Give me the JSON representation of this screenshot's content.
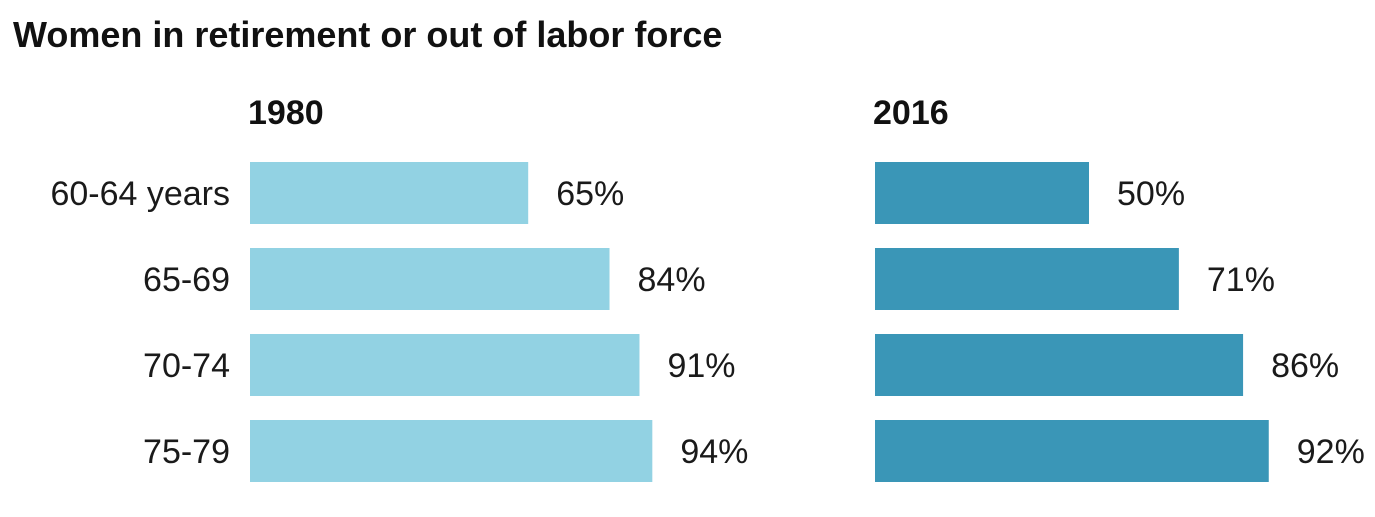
{
  "title": "Women in retirement or out of labor force",
  "chart_data": {
    "type": "bar",
    "orientation": "horizontal",
    "title": "Women in retirement or out of labor force",
    "categories": [
      "60-64 years",
      "65-69",
      "70-74",
      "75-79"
    ],
    "unit": "%",
    "xlim": [
      0,
      100
    ],
    "grid": false,
    "legend": "none",
    "panels": [
      {
        "title": "1980",
        "color": "#92d2e3",
        "values": [
          65,
          84,
          91,
          94
        ],
        "value_labels": [
          "65%",
          "84%",
          "91%",
          "94%"
        ]
      },
      {
        "title": "2016",
        "color": "#3a96b7",
        "values": [
          50,
          71,
          86,
          92
        ],
        "value_labels": [
          "50%",
          "71%",
          "86%",
          "92%"
        ]
      }
    ]
  }
}
